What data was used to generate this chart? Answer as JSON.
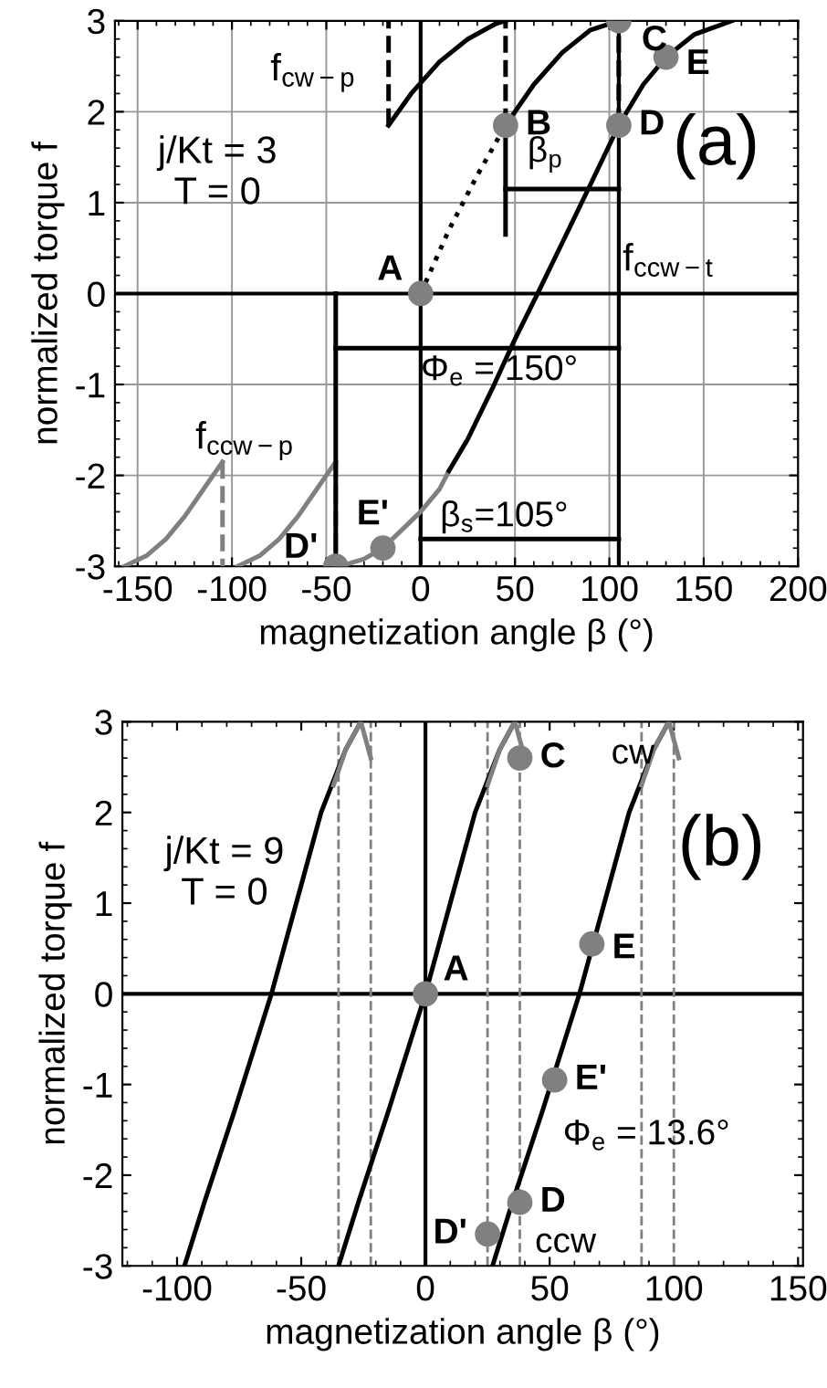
{
  "chart_data": [
    {
      "type": "line",
      "xlabel": "magnetization angle β (°)",
      "ylabel": "normalized torque f",
      "xlim": [
        -162,
        200
      ],
      "ylim": [
        -3,
        3
      ],
      "xticks": [
        -150,
        -100,
        -50,
        0,
        50,
        100,
        150,
        200
      ],
      "yticks": [
        -3,
        -2,
        -1,
        0,
        1,
        2,
        3
      ],
      "grid": true,
      "legend": false,
      "series": [
        {
          "color": "#808080",
          "x": [
            -45,
            -38,
            -30,
            -20,
            -10,
            0,
            10,
            15
          ],
          "values": [
            -3,
            -2.97,
            -2.92,
            -2.8,
            -2.6,
            -2.4,
            -2.15,
            -1.95
          ]
        },
        {
          "color": "#000000",
          "x": [
            15,
            25,
            39,
            50,
            62,
            76,
            90,
            105,
            118,
            130,
            145,
            165
          ],
          "values": [
            -1.95,
            -1.6,
            -1,
            -0.5,
            0,
            0.6,
            1.2,
            1.85,
            2.3,
            2.6,
            2.85,
            3
          ]
        },
        {
          "color": "#000000",
          "line_style": "dotted",
          "x": [
            0,
            15,
            30,
            45
          ],
          "values": [
            0,
            0.7,
            1.3,
            1.85
          ]
        },
        {
          "color": "#000000",
          "x": [
            45,
            60,
            75,
            90,
            105
          ],
          "values": [
            1.85,
            2.3,
            2.65,
            2.9,
            3
          ]
        },
        {
          "color": "#000000",
          "x": [
            -17,
            -5,
            10,
            25,
            40,
            45
          ],
          "values": [
            1.85,
            2.2,
            2.55,
            2.8,
            2.97,
            3
          ]
        },
        {
          "color": "#808080",
          "x": [
            -105,
            -115,
            -125,
            -135,
            -145,
            -157
          ],
          "values": [
            -1.85,
            -2.15,
            -2.45,
            -2.7,
            -2.88,
            -3
          ]
        },
        {
          "color": "#808080",
          "x": [
            -45,
            -55,
            -65,
            -75,
            -85,
            -97
          ],
          "values": [
            -1.85,
            -2.15,
            -2.45,
            -2.7,
            -2.88,
            -3
          ]
        },
        {
          "color": "#000000",
          "line_style": "dashed",
          "x": [
            -17,
            -17
          ],
          "values": [
            1.85,
            3
          ]
        },
        {
          "color": "#000000",
          "line_style": "dashed",
          "x": [
            45,
            45
          ],
          "values": [
            1.85,
            3
          ]
        },
        {
          "color": "#000000",
          "line_style": "dashed",
          "x": [
            105,
            105
          ],
          "values": [
            1.85,
            3
          ]
        },
        {
          "color": "#808080",
          "line_style": "dashed",
          "x": [
            -105,
            -105
          ],
          "values": [
            -1.85,
            -3
          ]
        },
        {
          "color": "#808080",
          "line_style": "dashed",
          "x": [
            -45,
            -45
          ],
          "values": [
            -1.85,
            -3
          ]
        },
        {
          "color": "#000000",
          "x": [
            45,
            45
          ],
          "values": [
            0.65,
            1.85
          ]
        },
        {
          "color": "#000000",
          "x": [
            -45,
            -45
          ],
          "values": [
            0,
            -3
          ]
        },
        {
          "color": "#000000",
          "x": [
            -45,
            105
          ],
          "values": [
            -0.6,
            -0.6
          ]
        },
        {
          "color": "#000000",
          "x": [
            0,
            105
          ],
          "values": [
            -2.7,
            -2.7
          ]
        },
        {
          "color": "#000000",
          "x": [
            45,
            105
          ],
          "values": [
            1.15,
            1.15
          ]
        },
        {
          "type": "scatter",
          "color": "#808080",
          "marker": "circle",
          "x": [
            0,
            45,
            105,
            105,
            130,
            -45,
            -20
          ],
          "values": [
            0,
            1.85,
            3,
            1.85,
            2.6,
            -3,
            -2.8
          ]
        }
      ],
      "ref_lines": [
        {
          "axis": "y",
          "value": 0,
          "color": "#000000"
        },
        {
          "axis": "x",
          "value": 0,
          "color": "#000000"
        },
        {
          "axis": "x",
          "value": 105,
          "color": "#000000"
        }
      ],
      "annotations": [
        "j/Kt = 3\nT = 0",
        "(a)",
        "β$_{s}$=105°",
        "β$_{p}$",
        "f$_{cw−p}$",
        "f$_{ccw−t}$",
        "f$_{ccw−p}$",
        {
          "text": "A",
          "x": 0,
          "y": 0
        },
        {
          "text": "B",
          "x": 45,
          "y": 1.85
        },
        {
          "text": "C",
          "x": 105,
          "y": 3
        },
        {
          "text": "D",
          "x": 105,
          "y": 1.85
        },
        {
          "text": "E",
          "x": 130,
          "y": 2.6
        },
        {
          "text": "D'",
          "x": -45,
          "y": -3
        },
        {
          "text": "E'",
          "x": -20,
          "y": -2.8
        },
        {
          "text": "Φ$_{e}$ = 150°",
          "x": 0,
          "y": -0.85
        }
      ]
    },
    {
      "type": "line",
      "xlabel": "magnetization angle β (°)",
      "ylabel": "normalized torque f",
      "xlim": [
        -122,
        152
      ],
      "ylim": [
        -3,
        3
      ],
      "xticks": [
        -100,
        -50,
        0,
        50,
        100,
        150
      ],
      "yticks": [
        -3,
        -2,
        -1,
        0,
        1,
        2,
        3
      ],
      "grid": false,
      "legend": false,
      "series": [
        {
          "color": "#000000",
          "x": [
            -97,
            -89,
            -77,
            -62,
            -52,
            -42,
            -32,
            -26
          ],
          "values": [
            -3,
            -2.3,
            -1.3,
            0,
            1,
            2,
            2.7,
            3
          ]
        },
        {
          "color": "#000000",
          "x": [
            -35,
            -27,
            -15,
            0,
            10,
            20,
            30,
            36
          ],
          "values": [
            -3,
            -2.3,
            -1.3,
            0,
            1,
            2,
            2.7,
            3
          ]
        },
        {
          "color": "#000000",
          "x": [
            27,
            35,
            47,
            62,
            72,
            82,
            92,
            98
          ],
          "values": [
            -3,
            -2.3,
            -1.3,
            0,
            1,
            2,
            2.7,
            3
          ]
        },
        {
          "color": "#808080",
          "x": [
            -37,
            -32,
            -26,
            -22
          ],
          "values": [
            2.3,
            2.7,
            3,
            2.6
          ]
        },
        {
          "color": "#808080",
          "x": [
            25,
            30,
            36,
            40
          ],
          "values": [
            2.3,
            2.7,
            3,
            2.6
          ]
        },
        {
          "color": "#808080",
          "x": [
            87,
            92,
            98,
            102
          ],
          "values": [
            2.3,
            2.7,
            3,
            2.6
          ]
        },
        {
          "type": "scatter",
          "color": "#808080",
          "marker": "circle",
          "x": [
            0,
            38,
            67,
            52,
            38,
            25
          ],
          "values": [
            0,
            2.6,
            0.55,
            -0.95,
            -2.3,
            -2.65
          ]
        }
      ],
      "ref_lines": [
        {
          "axis": "y",
          "value": 0,
          "color": "#000000"
        },
        {
          "axis": "x",
          "value": 0,
          "color": "#000000"
        },
        {
          "axis": "x",
          "value": -35,
          "color": "#808080",
          "line_style": "dashed"
        },
        {
          "axis": "x",
          "value": -22,
          "color": "#808080",
          "line_style": "dashed"
        },
        {
          "axis": "x",
          "value": 25,
          "color": "#808080",
          "line_style": "dashed"
        },
        {
          "axis": "x",
          "value": 38,
          "color": "#808080",
          "line_style": "dashed"
        },
        {
          "axis": "x",
          "value": 87,
          "color": "#808080",
          "line_style": "dashed"
        },
        {
          "axis": "x",
          "value": 100,
          "color": "#808080",
          "line_style": "dashed"
        }
      ],
      "annotations": [
        "j/Kt = 9\nT = 0",
        "(b)",
        "cw",
        "Φ$_{e}$ = 13.6°",
        {
          "text": "A",
          "x": 0,
          "y": 0
        },
        {
          "text": "C",
          "x": 38,
          "y": 2.6
        },
        {
          "text": "E",
          "x": 67,
          "y": 0.55
        },
        {
          "text": "E'",
          "x": 52,
          "y": -0.95
        },
        {
          "text": "D",
          "x": 38,
          "y": -2.3
        },
        {
          "text": "D'",
          "x": 25,
          "y": -2.65
        },
        {
          "text": "ccw",
          "x": 40,
          "y": -2.75
        }
      ]
    }
  ]
}
